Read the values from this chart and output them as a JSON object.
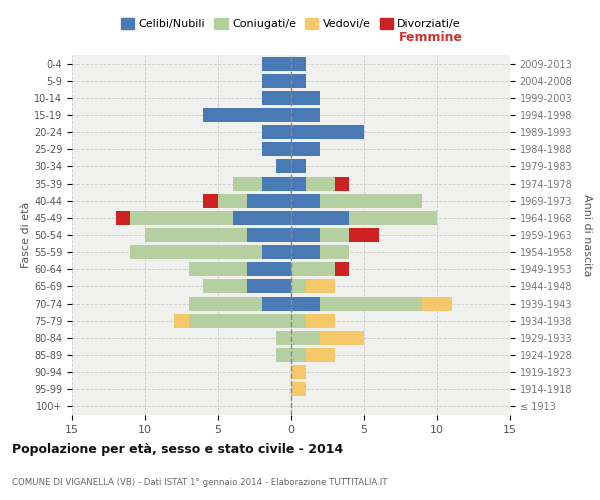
{
  "age_groups": [
    "100+",
    "95-99",
    "90-94",
    "85-89",
    "80-84",
    "75-79",
    "70-74",
    "65-69",
    "60-64",
    "55-59",
    "50-54",
    "45-49",
    "40-44",
    "35-39",
    "30-34",
    "25-29",
    "20-24",
    "15-19",
    "10-14",
    "5-9",
    "0-4"
  ],
  "birth_years": [
    "≤ 1913",
    "1914-1918",
    "1919-1923",
    "1924-1928",
    "1929-1933",
    "1934-1938",
    "1939-1943",
    "1944-1948",
    "1949-1953",
    "1954-1958",
    "1959-1963",
    "1964-1968",
    "1969-1973",
    "1974-1978",
    "1979-1983",
    "1984-1988",
    "1989-1993",
    "1994-1998",
    "1999-2003",
    "2004-2008",
    "2009-2013"
  ],
  "male": {
    "celibi": [
      0,
      0,
      0,
      0,
      0,
      0,
      2,
      3,
      3,
      2,
      3,
      4,
      3,
      2,
      1,
      2,
      2,
      6,
      2,
      2,
      2
    ],
    "coniugati": [
      0,
      0,
      0,
      1,
      1,
      7,
      5,
      3,
      4,
      9,
      7,
      7,
      2,
      2,
      0,
      0,
      0,
      0,
      0,
      0,
      0
    ],
    "vedovi": [
      0,
      0,
      0,
      0,
      0,
      1,
      0,
      0,
      0,
      0,
      0,
      0,
      0,
      0,
      0,
      0,
      0,
      0,
      0,
      0,
      0
    ],
    "divorziati": [
      0,
      0,
      0,
      0,
      0,
      0,
      0,
      0,
      0,
      0,
      0,
      1,
      1,
      0,
      0,
      0,
      0,
      0,
      0,
      0,
      0
    ]
  },
  "female": {
    "nubili": [
      0,
      0,
      0,
      0,
      0,
      0,
      2,
      0,
      0,
      2,
      2,
      4,
      2,
      1,
      1,
      2,
      5,
      2,
      2,
      1,
      1
    ],
    "coniugate": [
      0,
      0,
      0,
      1,
      2,
      1,
      7,
      1,
      3,
      2,
      2,
      6,
      7,
      2,
      0,
      0,
      0,
      0,
      0,
      0,
      0
    ],
    "vedove": [
      0,
      1,
      1,
      2,
      3,
      2,
      2,
      2,
      0,
      0,
      0,
      0,
      0,
      0,
      0,
      0,
      0,
      0,
      0,
      0,
      0
    ],
    "divorziate": [
      0,
      0,
      0,
      0,
      0,
      0,
      0,
      0,
      1,
      0,
      2,
      0,
      0,
      1,
      0,
      0,
      0,
      0,
      0,
      0,
      0
    ]
  },
  "colors": {
    "celibi": "#4a7ab5",
    "coniugati": "#b5cfa0",
    "vedovi": "#f5c96a",
    "divorziati": "#cc2222"
  },
  "xlim": 15,
  "title": "Popolazione per età, sesso e stato civile - 2014",
  "subtitle": "COMUNE DI VIGANELLA (VB) - Dati ISTAT 1° gennaio 2014 - Elaborazione TUTTITALIA.IT",
  "ylabel_left": "Fasce di età",
  "ylabel_right": "Anni di nascita",
  "xlabel_right": "Femmine",
  "legend_labels": [
    "Celibi/Nubili",
    "Coniugati/e",
    "Vedovi/e",
    "Divorziati/e"
  ],
  "bg_color": "#ffffff",
  "plot_bg": "#f0f0ee",
  "grid_color": "#cccccc"
}
